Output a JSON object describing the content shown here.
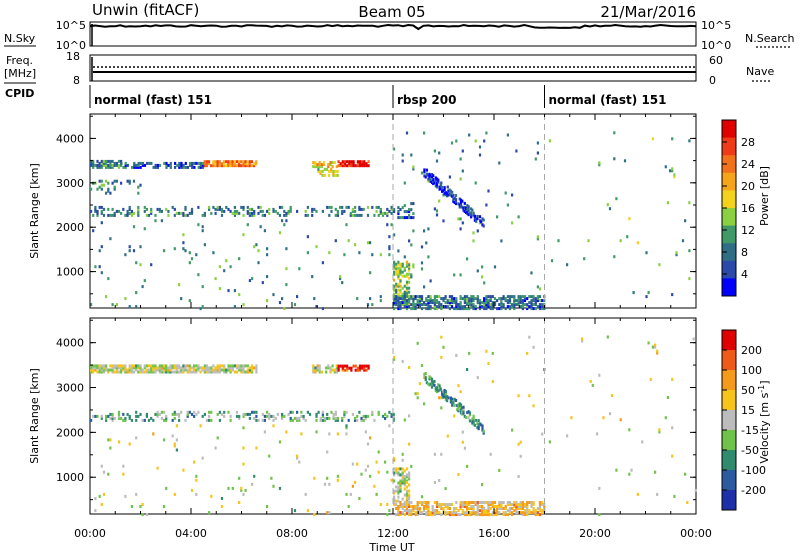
{
  "header": {
    "station_title": "Unwin (fitACF)",
    "beam": "Beam 05",
    "date": "21/Mar/2016"
  },
  "status_panels": {
    "nsky_label": "N.Sky",
    "freq_label_1": "Freq.",
    "freq_label_2": "[MHz]",
    "cpid_label": "CPID",
    "nsearch_label": "N.Search",
    "nave_label": "Nave",
    "noise_ticks_left": [
      "10^5",
      "10^0"
    ],
    "noise_ticks_right": [
      "10^5",
      "10^0"
    ],
    "freq_ticks": [
      "18",
      "8"
    ],
    "nave_ticks": [
      "60",
      "0"
    ]
  },
  "cpid_segments": [
    {
      "label": "normal (fast) 151",
      "start_hour": 0,
      "end_hour": 12
    },
    {
      "label": "rbsp 200",
      "start_hour": 12,
      "end_hour": 18
    },
    {
      "label": "normal (fast) 151",
      "start_hour": 18,
      "end_hour": 24
    }
  ],
  "chart_data": [
    {
      "type": "heatmap",
      "title": "",
      "xlabel": "Time UT",
      "ylabel": "Slant Range [km]",
      "xlim": [
        0,
        24
      ],
      "ylim": [
        180,
        4550
      ],
      "x_ticks": [
        "00:00",
        "04:00",
        "08:00",
        "12:00",
        "16:00",
        "20:00",
        "00:00"
      ],
      "y_ticks": [
        "1000",
        "2000",
        "3000",
        "4000"
      ],
      "colorbar": {
        "label": "Power [dB]",
        "ticks": [
          "4",
          "8",
          "12",
          "16",
          "20",
          "24",
          "28"
        ],
        "colors": [
          "#0000ff",
          "#2a49a8",
          "#2f6f86",
          "#3f9a68",
          "#8ad041",
          "#f2d21b",
          "#f6a51b",
          "#f2711b",
          "#ee3a16",
          "#e00000"
        ]
      },
      "regions": [
        {
          "t0": 0.0,
          "t1": 1.2,
          "r0": 3380,
          "r1": 3520,
          "v": 0.3,
          "density": 0.75
        },
        {
          "t0": 1.2,
          "t1": 4.5,
          "r0": 3380,
          "r1": 3500,
          "v": 0.22,
          "density": 0.6
        },
        {
          "t0": 4.5,
          "t1": 6.6,
          "r0": 3420,
          "r1": 3520,
          "v": 0.72,
          "density": 0.85
        },
        {
          "t0": 8.8,
          "t1": 9.8,
          "r0": 3400,
          "r1": 3520,
          "v": 0.55,
          "density": 0.7
        },
        {
          "t0": 9.8,
          "t1": 11.0,
          "r0": 3420,
          "r1": 3520,
          "v": 0.9,
          "density": 0.85
        },
        {
          "t0": 9.0,
          "t1": 9.8,
          "r0": 3200,
          "r1": 3350,
          "v": 0.5,
          "density": 0.35
        },
        {
          "t0": 0.0,
          "t1": 12.0,
          "r0": 2300,
          "r1": 2500,
          "v": 0.28,
          "density": 0.28
        },
        {
          "t0": 0.0,
          "t1": 2.0,
          "r0": 2800,
          "r1": 3100,
          "v": 0.3,
          "density": 0.2
        },
        {
          "t0": 0.0,
          "t1": 12.0,
          "r0": 200,
          "r1": 2200,
          "v": 0.3,
          "density": 0.02
        },
        {
          "t0": 12.0,
          "t1": 12.6,
          "r0": 300,
          "r1": 1250,
          "v": 0.45,
          "density": 0.55
        },
        {
          "t0": 12.0,
          "t1": 18.0,
          "r0": 200,
          "r1": 500,
          "v": 0.25,
          "density": 0.65
        },
        {
          "t0": 12.0,
          "t1": 12.8,
          "r0": 2250,
          "r1": 2600,
          "v": 0.2,
          "density": 0.3
        },
        {
          "t0": 12.0,
          "t1": 18.0,
          "r0": 600,
          "r1": 4200,
          "v": 0.3,
          "density": 0.015
        },
        {
          "t0": 18.0,
          "t1": 24.0,
          "r0": 200,
          "r1": 4200,
          "v": 0.35,
          "density": 0.006
        }
      ],
      "streaks": [
        {
          "t0": 13.2,
          "r0": 3300,
          "t1": 15.6,
          "r1": 2100,
          "width": 220,
          "v": 0.12,
          "density": 0.45
        }
      ]
    },
    {
      "type": "heatmap",
      "title": "",
      "xlabel": "Time UT",
      "ylabel": "Slant Range [km]",
      "xlim": [
        0,
        24
      ],
      "ylim": [
        180,
        4550
      ],
      "x_ticks": [
        "00:00",
        "04:00",
        "08:00",
        "12:00",
        "16:00",
        "20:00",
        "00:00"
      ],
      "y_ticks": [
        "1000",
        "2000",
        "3000",
        "4000"
      ],
      "colorbar": {
        "label": "Velocity [m s^-1]",
        "ticks": [
          "200",
          "100",
          "50",
          "15",
          "-15",
          "-50",
          "-100",
          "-200"
        ],
        "colors": [
          "#1c2fa8",
          "#2a5aa0",
          "#2f8a6e",
          "#6fc24a",
          "#bcbcbc",
          "#f6c41b",
          "#f69a1b",
          "#f05a18",
          "#e00000"
        ]
      },
      "regions": [
        {
          "t0": 0.0,
          "t1": 6.6,
          "r0": 3380,
          "r1": 3520,
          "v": 0.5,
          "density": 0.8
        },
        {
          "t0": 8.8,
          "t1": 9.8,
          "r0": 3380,
          "r1": 3520,
          "v": 0.5,
          "density": 0.6
        },
        {
          "t0": 9.8,
          "t1": 11.0,
          "r0": 3420,
          "r1": 3520,
          "v": 0.95,
          "density": 0.85
        },
        {
          "t0": 0.0,
          "t1": 12.0,
          "r0": 2300,
          "r1": 2500,
          "v": 0.36,
          "density": 0.3
        },
        {
          "t0": 0.0,
          "t1": 12.0,
          "r0": 200,
          "r1": 2200,
          "v": 0.5,
          "density": 0.02
        },
        {
          "t0": 12.0,
          "t1": 12.6,
          "r0": 500,
          "r1": 1250,
          "v": 0.5,
          "density": 0.55
        },
        {
          "t0": 12.0,
          "t1": 18.0,
          "r0": 200,
          "r1": 500,
          "v": 0.62,
          "density": 0.65
        },
        {
          "t0": 12.0,
          "t1": 18.0,
          "r0": 600,
          "r1": 4200,
          "v": 0.5,
          "density": 0.012
        },
        {
          "t0": 18.0,
          "t1": 24.0,
          "r0": 200,
          "r1": 4200,
          "v": 0.5,
          "density": 0.006
        }
      ],
      "streaks": [
        {
          "t0": 13.2,
          "r0": 3300,
          "t1": 15.6,
          "r1": 2100,
          "width": 220,
          "v": 0.3,
          "density": 0.45
        }
      ]
    }
  ]
}
